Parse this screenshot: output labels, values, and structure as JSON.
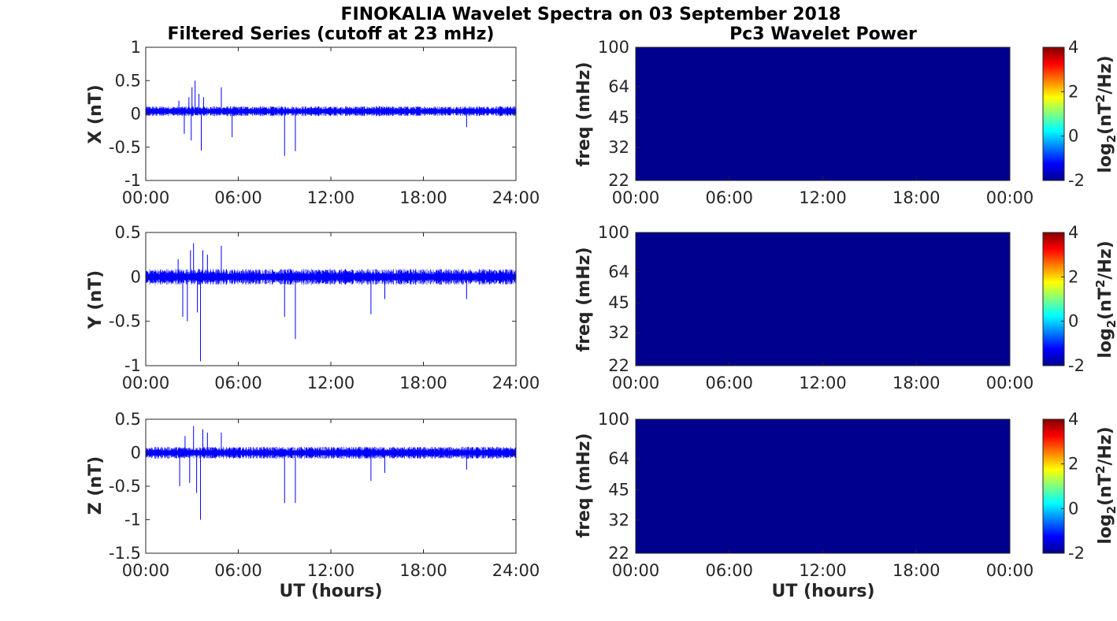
{
  "figure": {
    "title": "FINOKALIA Wavelet Spectra on 03 September 2018",
    "left_title": "Filtered Series (cutoff at 23 mHz)",
    "right_title": "Pc3 Wavelet Power",
    "xlabel": "UT (hours)"
  },
  "panels": {
    "x": {
      "ylabel": "X (nT)"
    },
    "y": {
      "ylabel": "Y (nT)"
    },
    "z": {
      "ylabel": "Z (nT)"
    },
    "freq_label": "freq (mHz)",
    "colorbar_label": {
      "prefix": "log",
      "sub": "2",
      "mid": "(nT",
      "sup": "2",
      "suffix": "/Hz)"
    }
  },
  "colors": {
    "series": "#0000ff",
    "wavelet_background": "#00008f"
  },
  "chart_data": [
    {
      "type": "line",
      "name": "X (nT)",
      "xlim": [
        0,
        24
      ],
      "ylim": [
        -1,
        1
      ],
      "xticks": [
        "00:00",
        "06:00",
        "12:00",
        "18:00",
        "24:00"
      ],
      "yticks": [
        "1",
        "0.5",
        "0",
        "-0.5",
        "-1"
      ],
      "ytick_values": [
        1,
        0.5,
        0,
        -0.5,
        -1
      ],
      "noise_band": {
        "base": 0.04,
        "amplitude": 0.05
      },
      "spikes": [
        [
          2.15,
          0.2
        ],
        [
          2.5,
          -0.3
        ],
        [
          2.8,
          0.25
        ],
        [
          2.95,
          -0.4
        ],
        [
          3.0,
          0.4
        ],
        [
          3.2,
          0.5
        ],
        [
          3.45,
          0.3
        ],
        [
          3.6,
          -0.55
        ],
        [
          3.75,
          0.25
        ],
        [
          4.9,
          0.4
        ],
        [
          5.6,
          -0.35
        ],
        [
          9.0,
          -0.63
        ],
        [
          9.7,
          -0.56
        ],
        [
          20.8,
          -0.2
        ]
      ]
    },
    {
      "type": "line",
      "name": "Y (nT)",
      "xlim": [
        0,
        24
      ],
      "ylim": [
        -1,
        0.5
      ],
      "xticks": [
        "00:00",
        "06:00",
        "12:00",
        "18:00",
        "24:00"
      ],
      "yticks": [
        "0.5",
        "0",
        "-0.5",
        "-1"
      ],
      "ytick_values": [
        0.5,
        0,
        -0.5,
        -1
      ],
      "noise_band": {
        "base": 0.0,
        "amplitude": 0.06
      },
      "spikes": [
        [
          2.1,
          0.2
        ],
        [
          2.4,
          -0.45
        ],
        [
          2.7,
          -0.5
        ],
        [
          2.9,
          0.3
        ],
        [
          3.1,
          0.38
        ],
        [
          3.35,
          -0.4
        ],
        [
          3.55,
          -0.95
        ],
        [
          3.7,
          0.3
        ],
        [
          4.0,
          0.25
        ],
        [
          4.9,
          0.35
        ],
        [
          9.0,
          -0.45
        ],
        [
          9.7,
          -0.7
        ],
        [
          14.6,
          -0.42
        ],
        [
          15.5,
          -0.25
        ],
        [
          20.8,
          -0.25
        ]
      ]
    },
    {
      "type": "line",
      "name": "Z (nT)",
      "xlim": [
        0,
        24
      ],
      "ylim": [
        -1.5,
        0.5
      ],
      "xticks": [
        "00:00",
        "06:00",
        "12:00",
        "18:00",
        "24:00"
      ],
      "yticks": [
        "0.5",
        "0",
        "-0.5",
        "-1",
        "-1.5"
      ],
      "ytick_values": [
        0.5,
        0,
        -0.5,
        -1,
        -1.5
      ],
      "noise_band": {
        "base": 0.0,
        "amplitude": 0.06
      },
      "spikes": [
        [
          2.2,
          -0.5
        ],
        [
          2.55,
          0.25
        ],
        [
          2.85,
          -0.45
        ],
        [
          3.1,
          0.4
        ],
        [
          3.3,
          -0.6
        ],
        [
          3.55,
          -1.0
        ],
        [
          3.7,
          0.35
        ],
        [
          4.0,
          0.3
        ],
        [
          4.9,
          0.3
        ],
        [
          9.0,
          -0.75
        ],
        [
          9.7,
          -0.75
        ],
        [
          14.6,
          -0.42
        ],
        [
          15.5,
          -0.3
        ],
        [
          20.8,
          -0.25
        ]
      ]
    },
    {
      "type": "heatmap",
      "name": "Pc3 Wavelet Power X",
      "xticks": [
        "00:00",
        "06:00",
        "12:00",
        "18:00",
        "00:00"
      ],
      "yticks": [
        "100",
        "64",
        "45",
        "32",
        "22"
      ],
      "ytick_values": [
        100,
        64,
        45,
        32,
        22
      ],
      "y_scale": "log",
      "ylim": [
        22,
        100
      ],
      "clim": [
        -2,
        4
      ],
      "cticks": [
        "4",
        "2",
        "0",
        "-2"
      ],
      "value": -2
    },
    {
      "type": "heatmap",
      "name": "Pc3 Wavelet Power Y",
      "xticks": [
        "00:00",
        "06:00",
        "12:00",
        "18:00",
        "00:00"
      ],
      "yticks": [
        "100",
        "64",
        "45",
        "32",
        "22"
      ],
      "ytick_values": [
        100,
        64,
        45,
        32,
        22
      ],
      "y_scale": "log",
      "ylim": [
        22,
        100
      ],
      "clim": [
        -2,
        4
      ],
      "cticks": [
        "4",
        "2",
        "0",
        "-2"
      ],
      "value": -2
    },
    {
      "type": "heatmap",
      "name": "Pc3 Wavelet Power Z",
      "xticks": [
        "00:00",
        "06:00",
        "12:00",
        "18:00",
        "00:00"
      ],
      "yticks": [
        "100",
        "64",
        "45",
        "32",
        "22"
      ],
      "ytick_values": [
        100,
        64,
        45,
        32,
        22
      ],
      "y_scale": "log",
      "ylim": [
        22,
        100
      ],
      "clim": [
        -2,
        4
      ],
      "cticks": [
        "4",
        "2",
        "0",
        "-2"
      ],
      "value": -2
    }
  ]
}
